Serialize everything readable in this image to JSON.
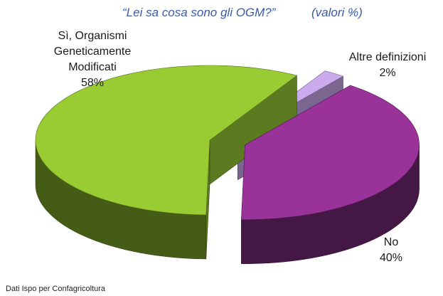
{
  "chart_data": {
    "type": "pie3d",
    "title": "“Lei sa cosa sono gli OGM?”",
    "subtitle": "(valori %)",
    "categories": [
      "Sì, Organismi Geneticamente Modificati",
      "No",
      "Altre definizioni"
    ],
    "values": [
      58,
      40,
      2
    ],
    "value_labels": [
      "58%",
      "40%",
      "2%"
    ],
    "colors": [
      "#99cc33",
      "#993399",
      "#ccaaee"
    ],
    "source": "Dati  Ispo per Confagricoltura"
  }
}
